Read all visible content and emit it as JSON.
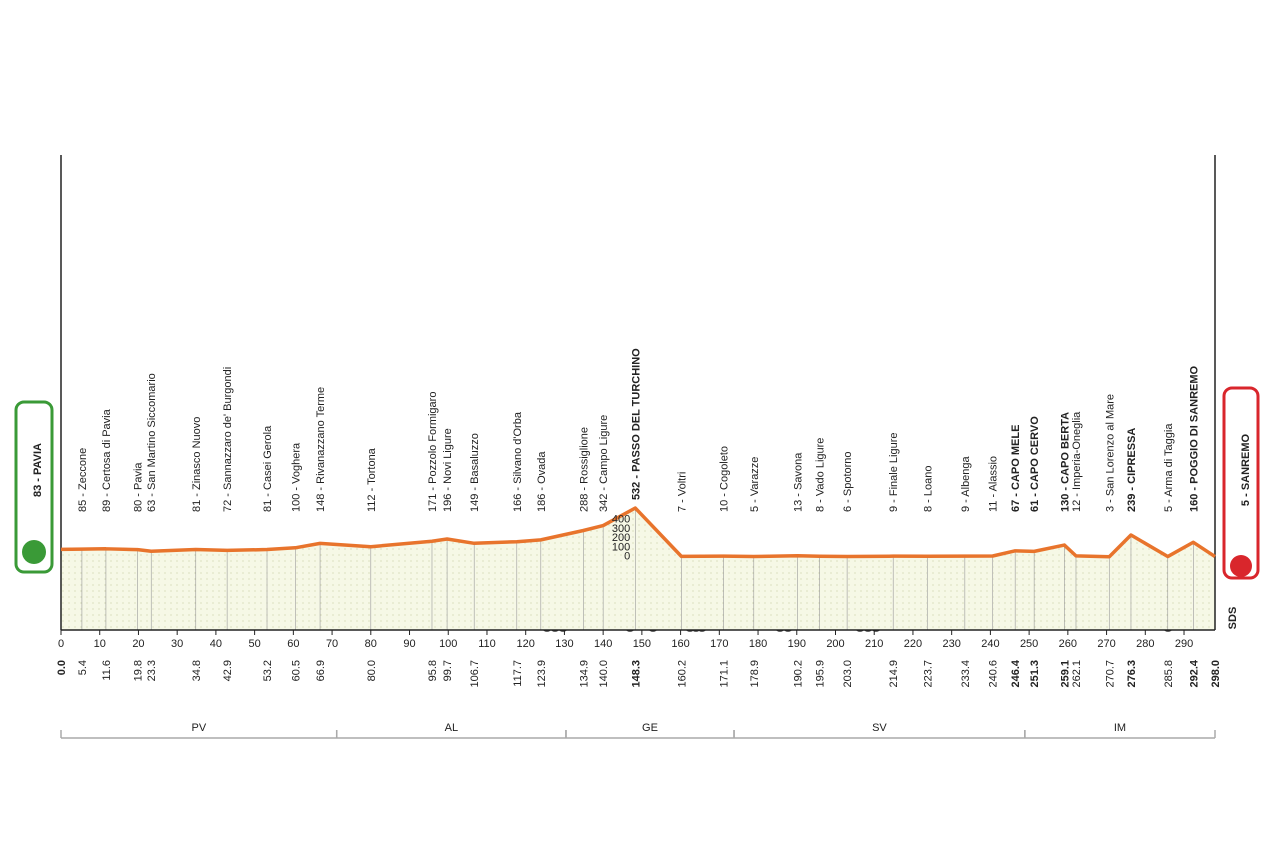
{
  "chart_data": {
    "type": "profile",
    "logo": "SDS",
    "color": "#e8742c",
    "x": [
      0,
      5.4,
      11.6,
      19.8,
      23.3,
      34.8,
      42.9,
      53.2,
      60.5,
      66.9,
      80,
      95.8,
      99.7,
      106.7,
      117.7,
      123.9,
      134.9,
      140,
      148.3,
      160.2,
      171.1,
      178.9,
      190.2,
      195.9,
      203,
      214.9,
      223.7,
      233.4,
      240.6,
      246.4,
      251.3,
      259.1,
      262.1,
      270.7,
      276.3,
      285.8,
      292.4,
      298
    ],
    "x_labels": [
      "0.0",
      "5.4",
      "11.6",
      "19.8",
      "23.3",
      "34.8",
      "42.9",
      "53.2",
      "60.5",
      "66.9",
      "80.0",
      "95.8",
      "99.7",
      "106.7",
      "117.7",
      "123.9",
      "134.9",
      "140.0",
      "148.3",
      "160.2",
      "171.1",
      "178.9",
      "190.2",
      "195.9",
      "203.0",
      "214.9",
      "223.7",
      "233.4",
      "240.6",
      "246.4",
      "251.3",
      "259.1",
      "262.1",
      "270.7",
      "276.3",
      "285.8",
      "292.4",
      "298.0"
    ],
    "values": [
      83,
      85,
      89,
      80,
      63,
      81,
      72,
      81,
      100,
      148,
      112,
      171,
      196,
      149,
      166,
      186,
      288,
      342,
      532,
      7,
      10,
      5,
      13,
      8,
      6,
      9,
      8,
      9,
      11,
      67,
      61,
      130,
      12,
      3,
      239,
      5,
      160,
      5
    ],
    "value_labels": [
      "83 - PAVIA",
      "85 - Zeccone",
      "89 - Certosa di Pavia",
      "80 - Pavia",
      "63 - San Martino Siccomario",
      "81 - Zinasco Nuovo",
      "72 - Sannazzaro de' Burgondi",
      "81 - Casei Gerola",
      "100 - Voghera",
      "148 - Rivanazzano Terme",
      "112 - Tortona",
      "171 - Pozzolo Formigaro",
      "196 - Novi Ligure",
      "149 - Basaluzzo",
      "166 - Silvano d'Orba",
      "186 - Ovada",
      "288 - Rossiglione",
      "342 - Campo Ligure",
      "532 - PASSO DEL TURCHINO",
      "7 - Voltri",
      "10 - Cogoleto",
      "5 - Varazze",
      "13 - Savona",
      "8 - Vado Ligure",
      "6 - Spotorno",
      "9 - Finale Ligure",
      "8 - Loano",
      "9 - Albenga",
      "11 - Alassio",
      "67 - CAPO MELE",
      "61 - CAPO CERVO",
      "130 - CAPO BERTA",
      "12 - Imperia-Oneglia",
      "3 - San Lorenzo al Mare",
      "239 - CIPRESSA",
      "5 - Arma di Taggia",
      "160 - POGGIO DI SANREMO",
      "5 - SANREMO"
    ],
    "bold": [
      true,
      false,
      false,
      false,
      false,
      false,
      false,
      false,
      false,
      false,
      false,
      false,
      false,
      false,
      false,
      false,
      false,
      false,
      true,
      false,
      false,
      false,
      false,
      false,
      false,
      false,
      false,
      false,
      false,
      true,
      true,
      true,
      false,
      false,
      true,
      false,
      true,
      true
    ],
    "xlim": [
      0,
      298
    ],
    "xticks": [
      0,
      10,
      20,
      30,
      40,
      50,
      60,
      70,
      80,
      90,
      100,
      110,
      120,
      130,
      140,
      150,
      160,
      170,
      180,
      190,
      200,
      210,
      220,
      230,
      240,
      250,
      260,
      270,
      280,
      290
    ],
    "ylim": [
      0,
      400
    ],
    "yticks": [
      0,
      100,
      200,
      300,
      400
    ],
    "provinces": [
      {
        "name": "PV",
        "from": 0,
        "to": 71.2
      },
      {
        "name": "AL",
        "from": 71.2,
        "to": 130.4
      },
      {
        "name": "GE",
        "from": 130.4,
        "to": 173.8
      },
      {
        "name": "SV",
        "from": 173.8,
        "to": 248.9
      },
      {
        "name": "IM",
        "from": 248.9,
        "to": 298
      }
    ]
  }
}
